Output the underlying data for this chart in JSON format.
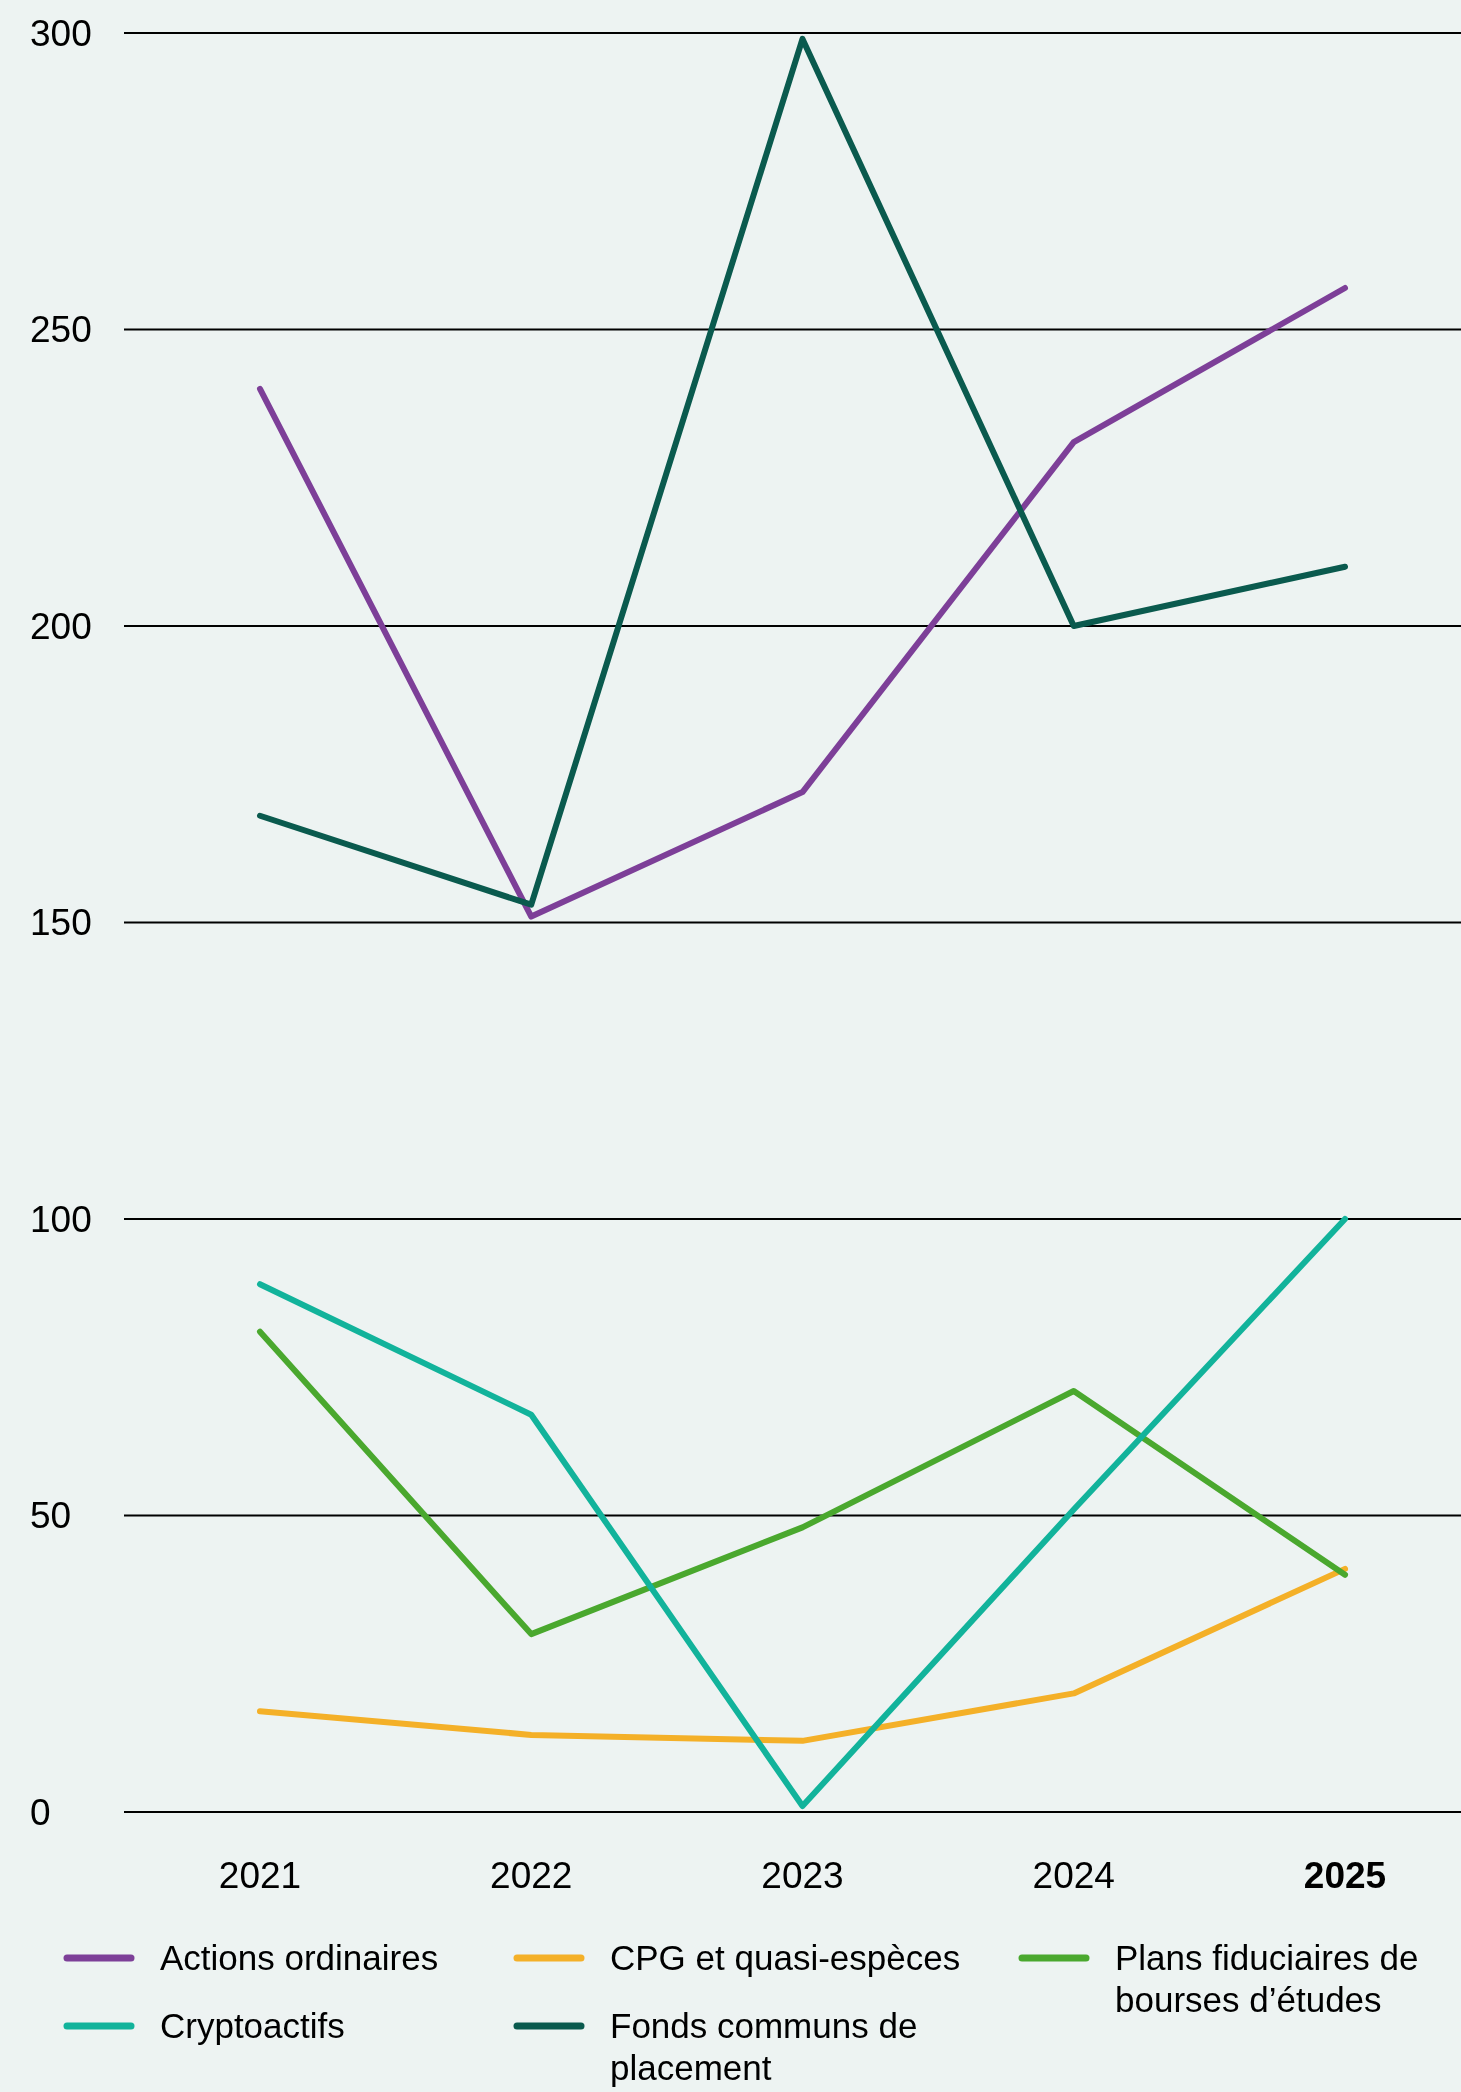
{
  "chart_data": {
    "type": "line",
    "categories": [
      "2021",
      "2022",
      "2023",
      "2024",
      "2025"
    ],
    "series": [
      {
        "name": "Actions ordinaires",
        "color": "#7d3f98",
        "values": [
          240,
          151,
          172,
          231,
          257
        ]
      },
      {
        "name": "CPG et quasi-espèces",
        "color": "#f4b028",
        "values": [
          17,
          13,
          12,
          20,
          41
        ]
      },
      {
        "name": "Plans fiduciaires de bourses d’études",
        "color": "#4aa82e",
        "values": [
          81,
          30,
          48,
          71,
          40
        ]
      },
      {
        "name": "Cryptoactifs",
        "color": "#12b39b",
        "values": [
          89,
          67,
          1,
          51,
          100
        ]
      },
      {
        "name": "Fonds communs de placement",
        "color": "#0a5a4e",
        "values": [
          168,
          153,
          299,
          200,
          210
        ]
      }
    ],
    "ylim": [
      0,
      300
    ],
    "yticks": [
      0,
      50,
      100,
      150,
      200,
      250,
      300
    ],
    "grid": "y",
    "legend": "bottom",
    "marker": "none",
    "line_style": "solid"
  }
}
